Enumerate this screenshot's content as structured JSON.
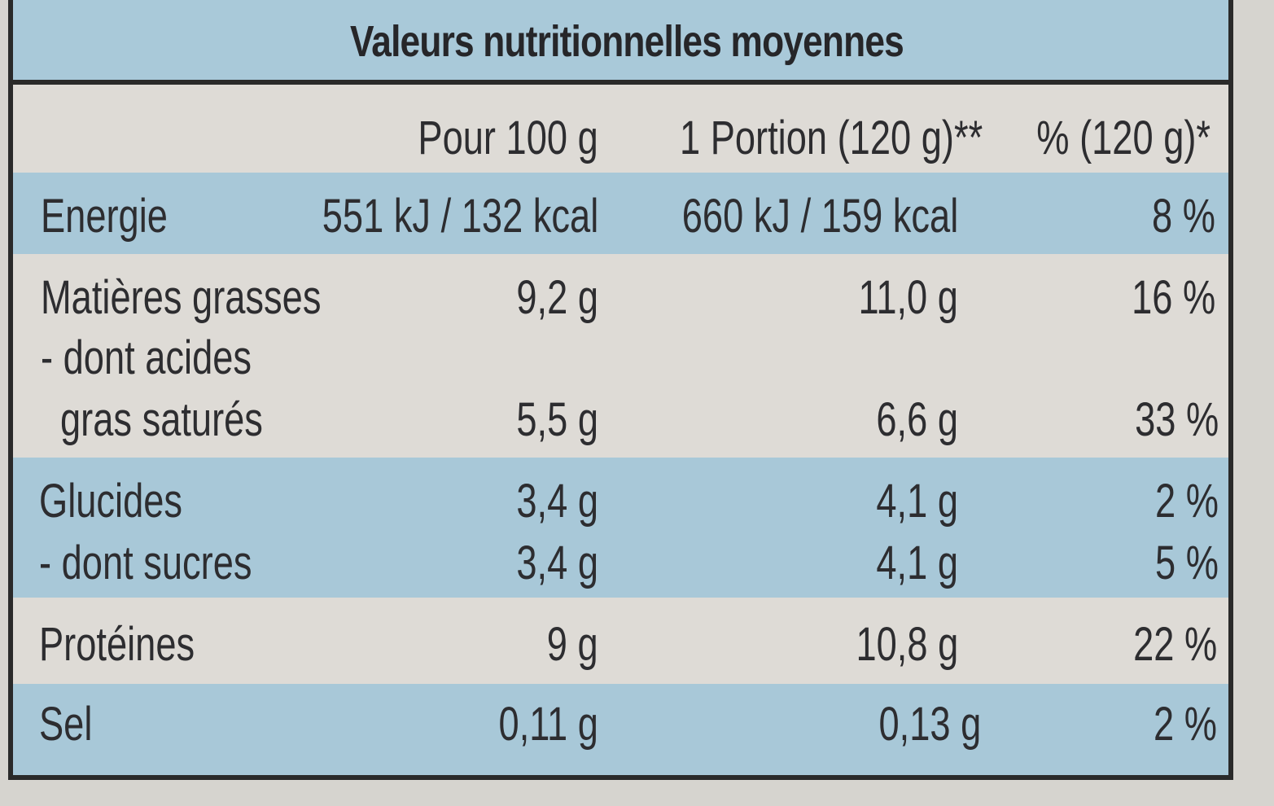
{
  "title": "Valeurs nutritionnelles moyennes",
  "headers": {
    "per100": "Pour 100 g",
    "portion": "1 Portion (120 g)**",
    "percent": "% (120 g)*"
  },
  "rows": {
    "energie": {
      "label": "Energie",
      "per100": "551 kJ / 132 kcal",
      "portion": "660 kJ / 159 kcal",
      "percent": "8 %"
    },
    "graisses": {
      "label": "Matières grasses",
      "per100": "9,2 g",
      "portion": "11,0 g",
      "percent": "16 %"
    },
    "satures_a": {
      "label": "- dont acides"
    },
    "satures": {
      "label": "gras saturés",
      "per100": "5,5 g",
      "portion": "6,6 g",
      "percent": "33 %"
    },
    "glucides": {
      "label": "Glucides",
      "per100": "3,4 g",
      "portion": "4,1 g",
      "percent": "2 %"
    },
    "sucres": {
      "label": "- dont sucres",
      "per100": "3,4 g",
      "portion": "4,1 g",
      "percent": "5 %"
    },
    "proteines": {
      "label": "Protéines",
      "per100": "9 g",
      "portion": "10,8 g",
      "percent": "22 %"
    },
    "sel": {
      "label": "Sel",
      "per100": "0,11 g",
      "portion": "0,13 g",
      "percent": "2 %"
    }
  },
  "colors": {
    "band": "#a8c8d8",
    "background": "#dedbd6",
    "border": "#2a2a2a",
    "text": "#2d2d30"
  }
}
